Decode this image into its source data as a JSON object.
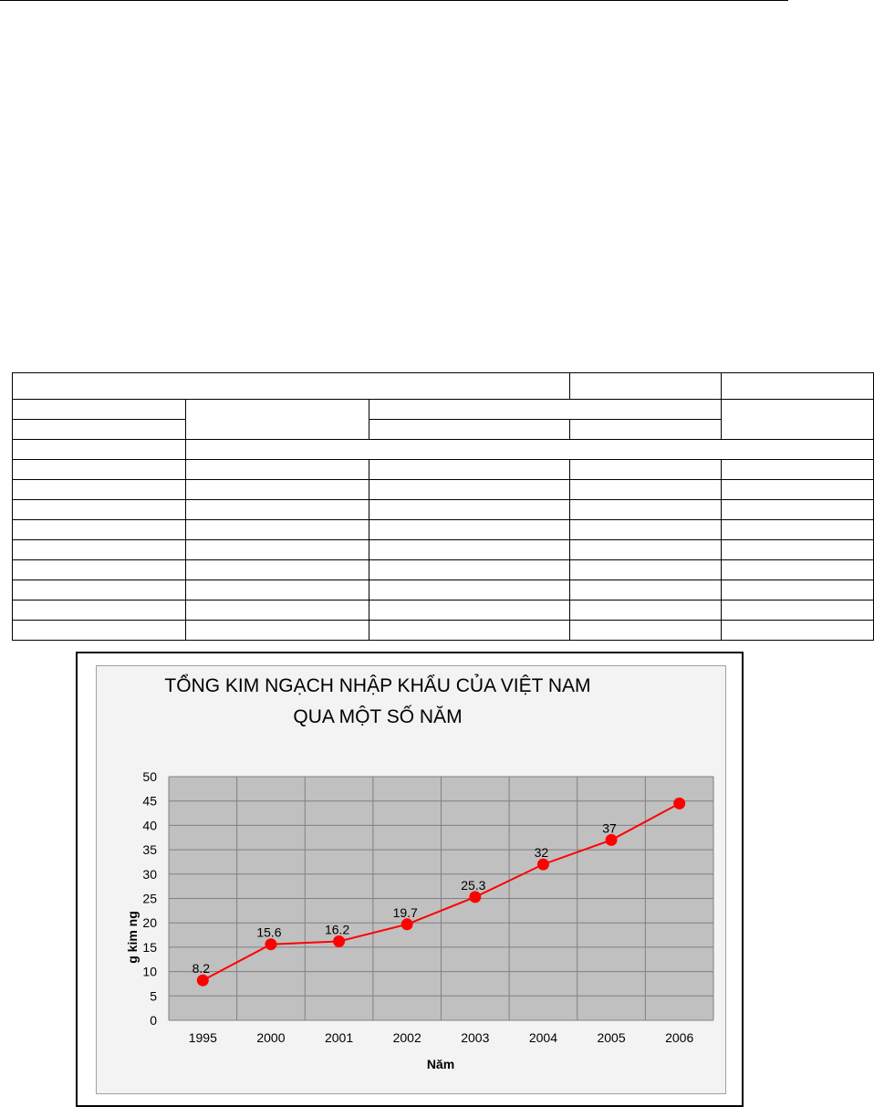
{
  "chart_data": {
    "type": "line",
    "title_lines": [
      "TỔNG KIM NGẠCH NHẬP KHẨU CỦA VIỆT NAM",
      "QUA MỘT SỐ NĂM"
    ],
    "xlabel": "Năm",
    "ylabel": "g kim ng",
    "categories": [
      "1995",
      "2000",
      "2001",
      "2002",
      "2003",
      "2004",
      "2005",
      "2006"
    ],
    "series": [
      {
        "values": [
          8.2,
          15.6,
          16.2,
          19.7,
          25.3,
          32,
          37,
          44.5
        ],
        "data_labels": [
          "8.2",
          "15.6",
          "16.2",
          "19.7",
          "25.3",
          "32",
          "37",
          ""
        ]
      }
    ],
    "ylim": [
      0,
      50
    ],
    "yticks": [
      "0",
      "5",
      "10",
      "15",
      "20",
      "25",
      "30",
      "35",
      "40",
      "45",
      "50"
    ],
    "grid": true,
    "plot_background": "#c0c0c0",
    "line_color": "#ff0000",
    "marker_color": "#ff0000",
    "gridline_color": "#808080"
  }
}
